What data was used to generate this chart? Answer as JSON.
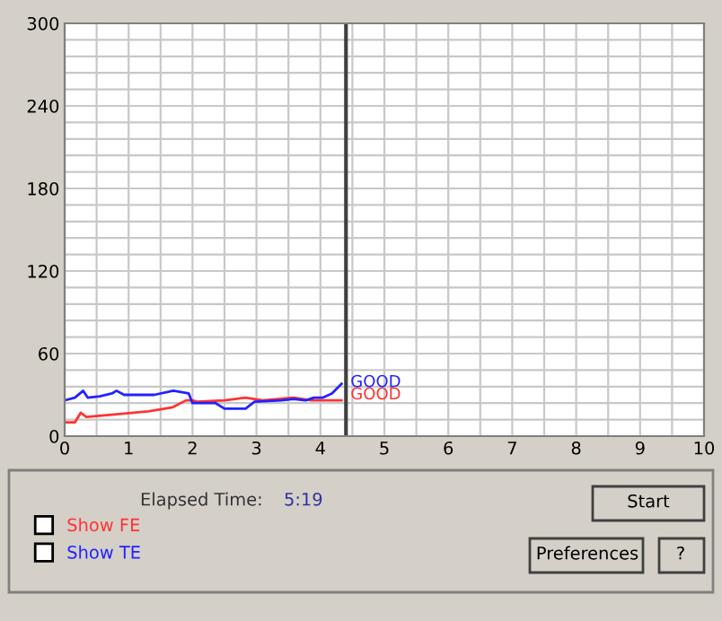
{
  "chart_data": {
    "type": "line",
    "series": [
      {
        "name": "Show FE",
        "color": "#ff3333",
        "x": [
          0,
          0.16,
          0.25,
          0.34,
          0.85,
          1.31,
          1.69,
          1.9,
          2.0,
          2.07,
          2.5,
          2.83,
          3.1,
          3.58,
          3.86,
          4.33
        ],
        "values": [
          10,
          10,
          17,
          14,
          16,
          18,
          21,
          26,
          26,
          25,
          26,
          28,
          26,
          28,
          26,
          26
        ]
      },
      {
        "name": "Show TE",
        "color": "#2222ff",
        "x": [
          0,
          0.16,
          0.29,
          0.36,
          0.55,
          0.74,
          0.81,
          0.93,
          1.4,
          1.7,
          1.94,
          2.0,
          2.36,
          2.5,
          2.83,
          2.97,
          3.39,
          3.58,
          3.77,
          3.9,
          4.04,
          4.18,
          4.33
        ],
        "values": [
          26,
          28,
          33,
          28,
          29,
          31,
          33,
          30,
          30,
          33,
          31,
          24,
          24,
          20,
          20,
          25,
          26,
          27,
          26,
          28,
          28,
          31,
          38
        ]
      }
    ],
    "xlim": [
      0,
      10
    ],
    "ylim": [
      0,
      300
    ],
    "xticks": [
      0,
      {
        "value": 0.5,
        "label": null
      },
      1,
      {
        "value": 1.5,
        "label": null
      },
      2,
      {
        "value": 2.5,
        "label": null
      },
      3,
      {
        "value": 3.5,
        "label": null
      },
      4,
      {
        "value": 4.5,
        "label": null
      },
      5,
      {
        "value": 5.5,
        "label": null
      },
      6,
      {
        "value": 6.5,
        "label": null
      },
      7,
      {
        "value": 7.5,
        "label": null
      },
      8,
      {
        "value": 8.5,
        "label": null
      },
      9,
      {
        "value": 9.5,
        "label": null
      },
      10
    ],
    "yticks": [
      0,
      {
        "value": 12,
        "label": null
      },
      {
        "value": 24,
        "label": null
      },
      {
        "value": 36,
        "label": null
      },
      {
        "value": 48,
        "label": null
      },
      60,
      {
        "value": 72,
        "label": null
      },
      {
        "value": 84,
        "label": null
      },
      {
        "value": 96,
        "label": null
      },
      {
        "value": 108,
        "label": null
      },
      120,
      {
        "value": 132,
        "label": null
      },
      {
        "value": 144,
        "label": null
      },
      {
        "value": 156,
        "label": null
      },
      {
        "value": 168,
        "label": null
      },
      180,
      {
        "value": 192,
        "label": null
      },
      {
        "value": 204,
        "label": null
      },
      {
        "value": 216,
        "label": null
      },
      {
        "value": 228,
        "label": null
      },
      240,
      {
        "value": 252,
        "label": null
      },
      {
        "value": 264,
        "label": null
      },
      {
        "value": 276,
        "label": null
      },
      {
        "value": 288,
        "label": null
      },
      300
    ],
    "grid": true,
    "ref_lines": [
      {
        "axis": "x",
        "value": 4.4,
        "color": "#404040"
      }
    ],
    "annotations": [
      {
        "text": "GOOD",
        "x": 4.47,
        "y": 30
      },
      {
        "text": "GOOD",
        "x": 4.47,
        "y": 39
      },
      "Elapsed Time:",
      "5:19",
      "Start",
      "Preferences",
      "?"
    ],
    "legend": "bottom left"
  }
}
